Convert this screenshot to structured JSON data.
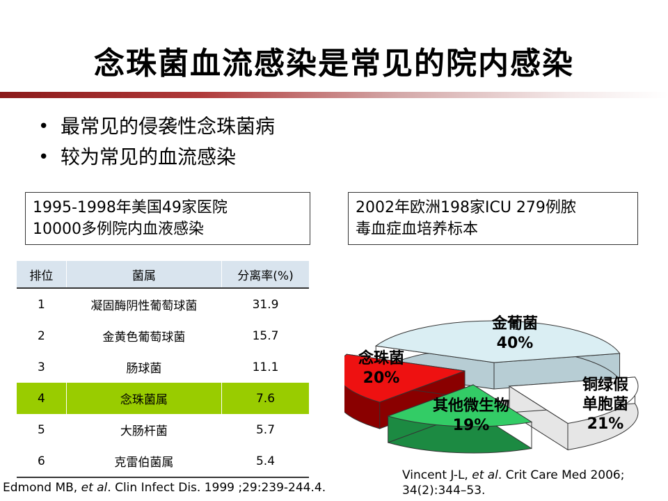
{
  "title": "念珠菌血流感染是常见的院内感染",
  "bullets": [
    {
      "symbol": "•",
      "text": "最常见的侵袭性念珠菌病"
    },
    {
      "symbol": "•",
      "text": "较为常见的血流感染"
    }
  ],
  "box_left": {
    "line1": "1995-1998年美国49家医院",
    "line2": "10000多例院内血液感染"
  },
  "box_right": {
    "line1": "2002年欧洲198家ICU  279例脓",
    "line2": "毒血症血培养标本"
  },
  "table": {
    "headers": [
      "排位",
      "菌属",
      "分离率(%)"
    ],
    "rows": [
      {
        "rank": "1",
        "genus": "凝固酶阴性葡萄球菌",
        "rate": "31.9"
      },
      {
        "rank": "2",
        "genus": "金黄色葡萄球菌",
        "rate": "15.7"
      },
      {
        "rank": "3",
        "genus": "肠球菌",
        "rate": "11.1"
      },
      {
        "rank": "4",
        "genus": "念珠菌属",
        "rate": "7.6"
      },
      {
        "rank": "5",
        "genus": "大肠杆菌",
        "rate": "5.7"
      },
      {
        "rank": "6",
        "genus": "克雷伯菌属",
        "rate": "5.4"
      }
    ],
    "highlight_color": "#99cc00"
  },
  "pie": {
    "type": "pie",
    "slices": [
      {
        "label_lines": [
          "金葡菌"
        ],
        "percent_label": "40%",
        "value": 40,
        "color": "#daeef3"
      },
      {
        "label_lines": [
          "铜绿假",
          "单胞菌"
        ],
        "percent_label": "21%",
        "value": 21,
        "color": "#ffffff"
      },
      {
        "label_lines": [
          "其他微生物"
        ],
        "percent_label": "19%",
        "value": 19,
        "color": "#33cc66"
      },
      {
        "label_lines": [
          "念珠菌"
        ],
        "percent_label": "20%",
        "value": 20,
        "color": "#ee1111"
      }
    ]
  },
  "citation_left": {
    "pre": "Edmond  MB, ",
    "italic": "et al",
    "post": ". Clin Infect Dis. 1999 ;29:239-244.4."
  },
  "citation_right": {
    "pre": "Vincent  J-L, ",
    "italic": "et al",
    "post": ". Crit Care Med 2006; 34(2):344–53."
  }
}
